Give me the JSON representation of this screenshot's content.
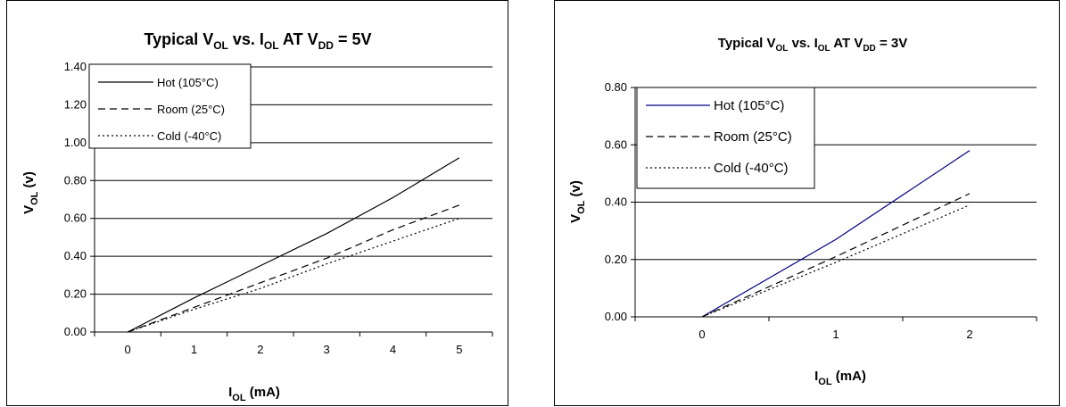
{
  "charts": [
    {
      "title": {
        "main": "Typical V",
        "sub1": "OL",
        "mid1": " vs. I",
        "sub2": "OL",
        "mid2": " AT V",
        "sub3": "DD",
        "end": " = 5V"
      },
      "xlabel": {
        "main": "I",
        "sub": "OL",
        "rest": " (mA)"
      },
      "ylabel": {
        "main": "V",
        "sub": "OL",
        "rest": " (v)"
      }
    },
    {
      "title": {
        "main": "Typical V",
        "sub1": "OL",
        "mid1": " vs. I",
        "sub2": "OL",
        "mid2": " AT V",
        "sub3": "DD",
        "end": " = 3V"
      },
      "xlabel": {
        "main": "I",
        "sub": "OL",
        "rest": " (mA)"
      },
      "ylabel": {
        "main": "V",
        "sub": "OL",
        "rest": " (v)"
      }
    }
  ],
  "chart_data": [
    {
      "type": "line",
      "title": "Typical VOL vs. IOL AT VDD = 5V",
      "xlabel": "IOL (mA)",
      "ylabel": "VOL (v)",
      "x": [
        0,
        1,
        2,
        3,
        4,
        5
      ],
      "xlim": [
        -0.5,
        5.5
      ],
      "ylim": [
        0,
        1.4
      ],
      "yticks": [
        "0.00",
        "0.20",
        "0.40",
        "0.60",
        "0.80",
        "1.00",
        "1.20",
        "1.40"
      ],
      "grid": "horizontal",
      "legend_position": "top-left",
      "series": [
        {
          "name": "Hot (105°C)",
          "style": "solid",
          "color": "#000000",
          "values": [
            0.0,
            0.18,
            0.35,
            0.52,
            0.71,
            0.92
          ]
        },
        {
          "name": "Room (25°C)",
          "style": "dashed",
          "color": "#000000",
          "values": [
            0.0,
            0.13,
            0.26,
            0.39,
            0.54,
            0.67
          ]
        },
        {
          "name": "Cold (-40°C)",
          "style": "dotted",
          "color": "#000000",
          "values": [
            0.0,
            0.12,
            0.23,
            0.36,
            0.48,
            0.6
          ]
        }
      ]
    },
    {
      "type": "line",
      "title": "Typical VOL vs. IOL AT VDD = 3V",
      "xlabel": "IOL (mA)",
      "ylabel": "VOL (v)",
      "x": [
        0,
        1,
        2
      ],
      "xlim": [
        -0.5,
        2.5
      ],
      "ylim": [
        0,
        0.8
      ],
      "yticks": [
        "0.00",
        "0.20",
        "0.40",
        "0.60",
        "0.80"
      ],
      "grid": "horizontal",
      "legend_position": "top-left",
      "series": [
        {
          "name": "Hot (105°C)",
          "style": "solid",
          "color": "#000080",
          "values": [
            0.0,
            0.27,
            0.58
          ]
        },
        {
          "name": "Room (25°C)",
          "style": "dashed",
          "color": "#000000",
          "values": [
            0.0,
            0.21,
            0.43
          ]
        },
        {
          "name": "Cold (-40°C)",
          "style": "dotted",
          "color": "#000000",
          "values": [
            0.0,
            0.19,
            0.39
          ]
        }
      ]
    }
  ]
}
